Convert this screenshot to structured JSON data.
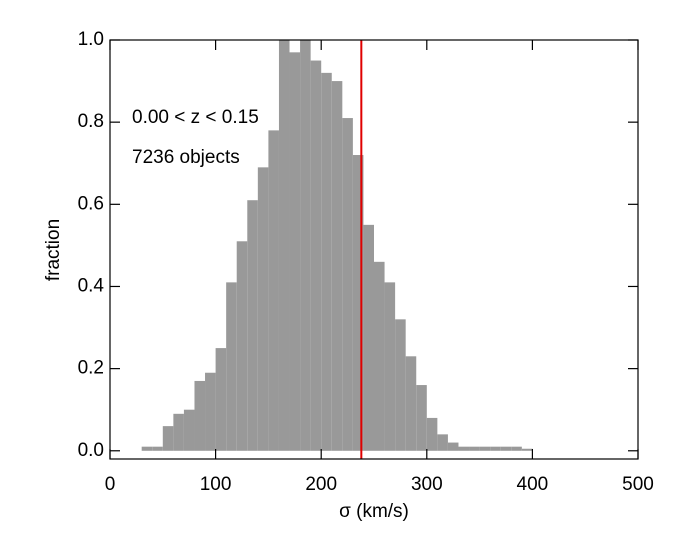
{
  "chart_data": {
    "type": "histogram",
    "xlabel": "σ (km/s)",
    "ylabel": "fraction",
    "annotations": [
      "0.00 < z < 0.15",
      "7236 objects"
    ],
    "bins": [
      30,
      40,
      50,
      60,
      70,
      80,
      90,
      100,
      110,
      120,
      130,
      140,
      150,
      160,
      170,
      180,
      190,
      200,
      210,
      220,
      230,
      240,
      250,
      260,
      270,
      280,
      290,
      300,
      310,
      320,
      330,
      340,
      350,
      360,
      370,
      380,
      390,
      400
    ],
    "values": [
      0.01,
      0.01,
      0.06,
      0.09,
      0.1,
      0.17,
      0.19,
      0.25,
      0.41,
      0.51,
      0.61,
      0.69,
      0.78,
      1.0,
      0.97,
      1.0,
      0.95,
      0.92,
      0.9,
      0.81,
      0.72,
      0.55,
      0.46,
      0.41,
      0.32,
      0.23,
      0.16,
      0.08,
      0.04,
      0.02,
      0.01,
      0.01,
      0.01,
      0.01,
      0.01,
      0.01,
      0.005
    ],
    "color": "#999999",
    "vline": 238,
    "vline_color": "#e00000",
    "xlim": [
      0,
      500
    ],
    "xticks": [
      0,
      100,
      200,
      300,
      400,
      500
    ],
    "ylim": [
      -0.02,
      1.0
    ],
    "yticks": [
      {
        "value": 0,
        "label": "0.0"
      },
      {
        "value": 0.2,
        "label": "0.2"
      },
      {
        "value": 0.4,
        "label": "0.4"
      },
      {
        "value": 0.6,
        "label": "0.6"
      },
      {
        "value": 0.8,
        "label": "0.8"
      },
      {
        "value": 1.0,
        "label": "1.0"
      }
    ]
  }
}
